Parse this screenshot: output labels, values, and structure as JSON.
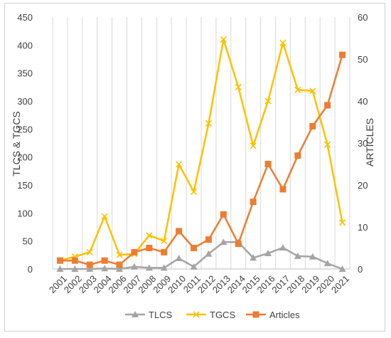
{
  "chart_data": {
    "type": "line",
    "categories": [
      "2001",
      "2002",
      "2003",
      "2004",
      "2006",
      "2007",
      "2008",
      "2009",
      "2010",
      "2011",
      "2012",
      "2013",
      "2014",
      "2015",
      "2016",
      "2017",
      "2018",
      "2019",
      "2020",
      "2021"
    ],
    "y_left": {
      "label": "TLCS & TGCS",
      "ticks": [
        0,
        50,
        100,
        150,
        200,
        250,
        300,
        350,
        400,
        450
      ],
      "ylim": [
        0,
        450
      ]
    },
    "y_right": {
      "label": "ARTICLES",
      "ticks": [
        0,
        10,
        20,
        30,
        40,
        50,
        60
      ],
      "ylim": [
        0,
        60
      ]
    },
    "grid": "vertical",
    "legend_position": "bottom",
    "series": [
      {
        "name": "TLCS",
        "axis": "left",
        "color": "#a5a5a5",
        "marker": "triangle",
        "values": [
          0,
          0,
          0,
          1,
          0,
          4,
          2,
          2,
          19,
          4,
          27,
          48,
          48,
          20,
          28,
          38,
          23,
          22,
          10,
          0
        ]
      },
      {
        "name": "TGCS",
        "axis": "left",
        "color": "#ffc000",
        "marker": "x",
        "values": [
          15,
          22,
          30,
          94,
          25,
          27,
          60,
          50,
          187,
          138,
          260,
          410,
          325,
          220,
          300,
          404,
          320,
          318,
          222,
          83
        ]
      },
      {
        "name": "Articles",
        "axis": "right",
        "color": "#ed7d31",
        "marker": "square",
        "values": [
          2,
          2,
          1,
          2,
          1,
          4,
          5,
          4,
          9,
          5,
          7,
          13,
          6,
          16,
          25,
          19,
          27,
          34,
          39,
          51
        ]
      }
    ]
  }
}
